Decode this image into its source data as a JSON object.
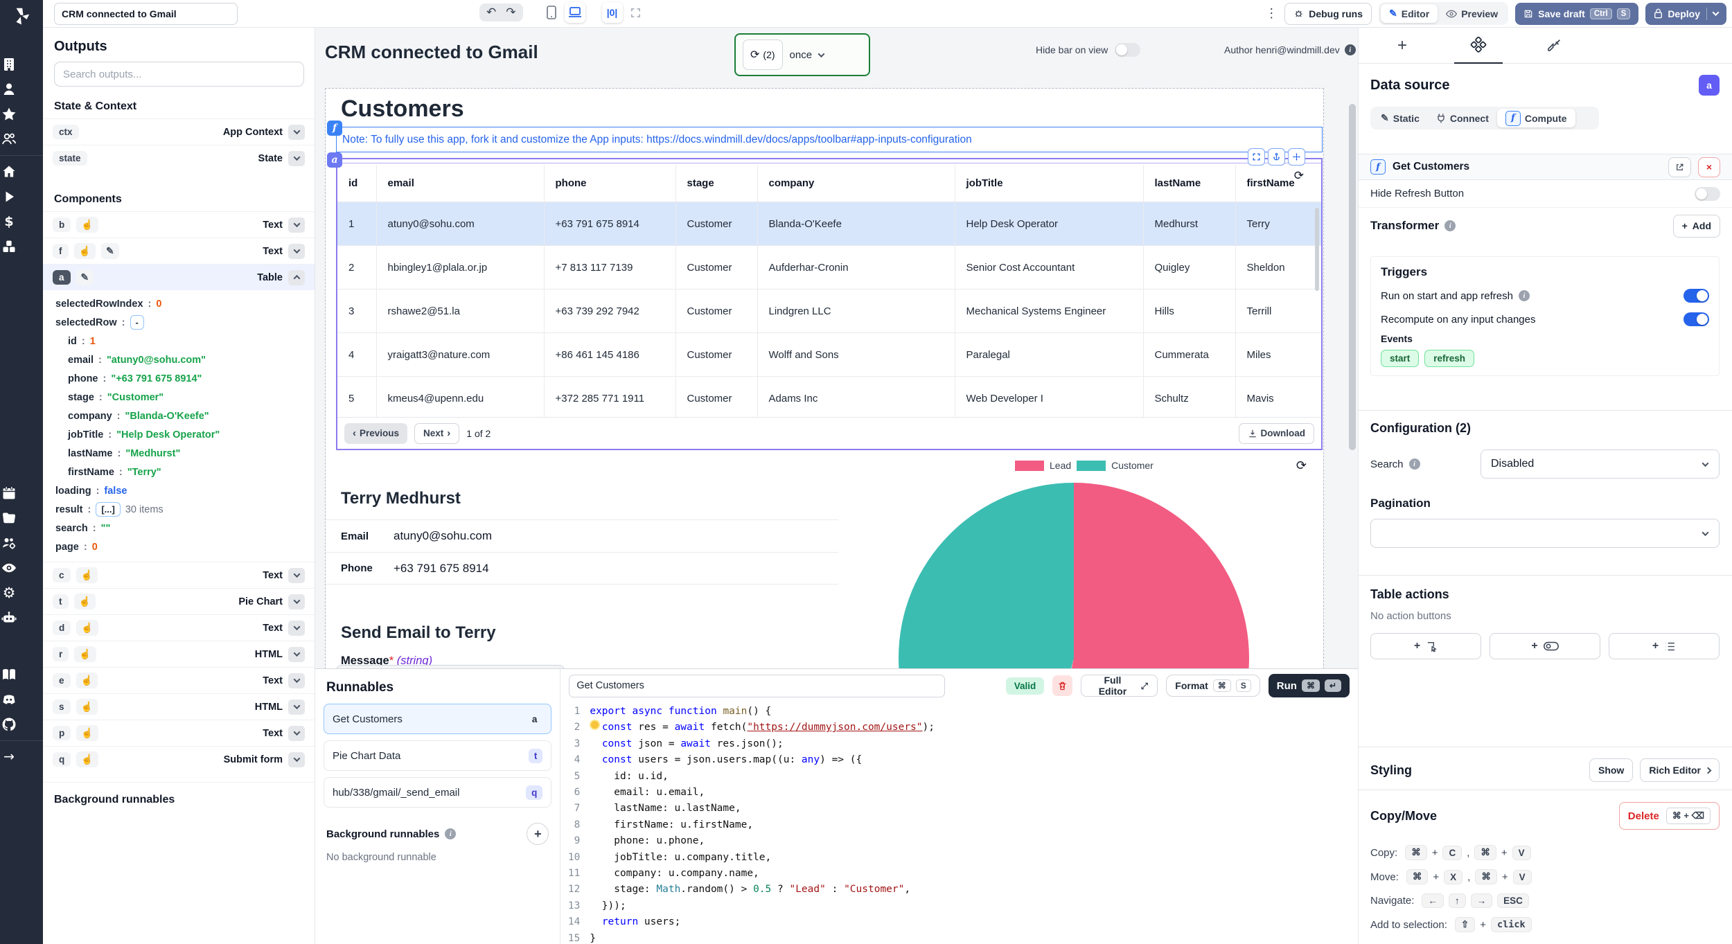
{
  "topbar": {
    "title_input": "CRM connected to Gmail",
    "debug_runs_label": "Debug runs",
    "editor_label": "Editor",
    "preview_label": "Preview",
    "save_draft_label": "Save draft",
    "save_kbd": [
      "Ctrl",
      "S"
    ],
    "deploy_label": "Deploy"
  },
  "sidebar": {
    "groups": [
      [
        "building-icon",
        "user-icon",
        "star-icon",
        "user-group-icon"
      ],
      [
        "home-icon",
        "play-icon",
        "dollar-icon",
        "cubes-icon"
      ],
      [
        "calendar-icon",
        "folder-icon",
        "team-settings-icon",
        "eye-icon",
        "gear-icon",
        "robot-icon"
      ],
      [
        "book-icon",
        "discord-icon",
        "github-icon"
      ],
      [
        "arrow-right-icon"
      ]
    ]
  },
  "left_panel": {
    "title": "Outputs",
    "search_placeholder": "Search outputs...",
    "state_context_title": "State & Context",
    "state_items": [
      {
        "id": "ctx",
        "type": "App Context"
      },
      {
        "id": "state",
        "type": "State"
      }
    ],
    "components_title": "Components",
    "components_top": [
      {
        "id": "b",
        "icons": [
          "hand"
        ],
        "type": "Text"
      },
      {
        "id": "f",
        "icons": [
          "hand",
          "pencil"
        ],
        "type": "Text"
      },
      {
        "id": "a",
        "icons": [
          "pencil"
        ],
        "type": "Table",
        "selected": true,
        "dark": true,
        "expanded": true
      }
    ],
    "table_props": [
      {
        "key": "selectedRowIndex",
        "value": "0",
        "cls": "num",
        "indent": 0
      },
      {
        "key": "selectedRow",
        "value": "-",
        "cls": "box",
        "indent": 0
      },
      {
        "key": "id",
        "value": "1",
        "cls": "num",
        "indent": 1
      },
      {
        "key": "email",
        "value": "\"atuny0@sohu.com\"",
        "cls": "str",
        "indent": 1
      },
      {
        "key": "phone",
        "value": "\"+63 791 675 8914\"",
        "cls": "str",
        "indent": 1
      },
      {
        "key": "stage",
        "value": "\"Customer\"",
        "cls": "str",
        "indent": 1
      },
      {
        "key": "company",
        "value": "\"Blanda-O'Keefe\"",
        "cls": "str",
        "indent": 1
      },
      {
        "key": "jobTitle",
        "value": "\"Help Desk Operator\"",
        "cls": "str",
        "indent": 1
      },
      {
        "key": "lastName",
        "value": "\"Medhurst\"",
        "cls": "str",
        "indent": 1
      },
      {
        "key": "firstName",
        "value": "\"Terry\"",
        "cls": "str",
        "indent": 1
      },
      {
        "key": "loading",
        "value": "false",
        "cls": "bool",
        "indent": 0
      },
      {
        "key": "result",
        "value": "[...]",
        "cls": "box",
        "suffix": "30 items",
        "indent": 0
      },
      {
        "key": "search",
        "value": "\"\"",
        "cls": "str",
        "indent": 0
      },
      {
        "key": "page",
        "value": "0",
        "cls": "num",
        "indent": 0
      }
    ],
    "components_bottom": [
      {
        "id": "c",
        "icons": [
          "hand"
        ],
        "type": "Text"
      },
      {
        "id": "t",
        "icons": [
          "hand"
        ],
        "type": "Pie Chart"
      },
      {
        "id": "d",
        "icons": [
          "hand"
        ],
        "type": "Text"
      },
      {
        "id": "r",
        "icons": [
          "hand"
        ],
        "type": "HTML"
      },
      {
        "id": "e",
        "icons": [
          "hand"
        ],
        "type": "Text"
      },
      {
        "id": "s",
        "icons": [
          "hand"
        ],
        "type": "HTML"
      },
      {
        "id": "p",
        "icons": [
          "hand"
        ],
        "type": "Text"
      },
      {
        "id": "q",
        "icons": [
          "hand"
        ],
        "type": "Submit form"
      }
    ],
    "background_title": "Background runnables"
  },
  "canvas": {
    "app_title": "CRM connected to Gmail",
    "refresh_count": "(2)",
    "schedule_value": "once",
    "hide_bar_label": "Hide bar on view",
    "author": "Author henri@windmill.dev",
    "page_title": "Customers",
    "note_badge": "f",
    "table_badge": "a",
    "note": "Note: To fully use this app, fork it and customize the App inputs: https://docs.windmill.dev/docs/apps/toolbar#app-inputs-configuration",
    "table": {
      "columns": [
        "id",
        "email",
        "phone",
        "stage",
        "company",
        "jobTitle",
        "lastName",
        "firstName"
      ],
      "rows": [
        [
          "1",
          "atuny0@sohu.com",
          "+63 791 675 8914",
          "Customer",
          "Blanda-O'Keefe",
          "Help Desk Operator",
          "Medhurst",
          "Terry"
        ],
        [
          "2",
          "hbingley1@plala.or.jp",
          "+7 813 117 7139",
          "Customer",
          "Aufderhar-Cronin",
          "Senior Cost Accountant",
          "Quigley",
          "Sheldon"
        ],
        [
          "3",
          "rshawe2@51.la",
          "+63 739 292 7942",
          "Customer",
          "Lindgren LLC",
          "Mechanical Systems Engineer",
          "Hills",
          "Terrill"
        ],
        [
          "4",
          "yraigatt3@nature.com",
          "+86 461 145 4186",
          "Customer",
          "Wolff and Sons",
          "Paralegal",
          "Cummerata",
          "Miles"
        ],
        [
          "5",
          "kmeus4@upenn.edu",
          "+372 285 771 1911",
          "Customer",
          "Adams Inc",
          "Web Developer I",
          "Schultz",
          "Mavis"
        ]
      ],
      "selected_row_index": 0,
      "previous_label": "Previous",
      "next_label": "Next",
      "page_info": "1 of 2",
      "download_label": "Download"
    },
    "detail": {
      "name": "Terry Medhurst",
      "email_label": "Email",
      "email": "atuny0@sohu.com",
      "phone_label": "Phone",
      "phone": "+63 791 675 8914",
      "send_title": "Send Email to Terry",
      "message_label": "Message",
      "message_required": "*",
      "message_type": "(string)"
    }
  },
  "chart_data": {
    "type": "pie",
    "labels": [
      "Lead",
      "Customer"
    ],
    "values": [
      16,
      14
    ],
    "colors": [
      "#f25c82",
      "#3cbdb2"
    ],
    "legend_position": "top-right",
    "total_items": 30
  },
  "bottom_panel": {
    "runnables_title": "Runnables",
    "runnables": [
      {
        "label": "Get Customers",
        "badge": "a",
        "selected": true
      },
      {
        "label": "Pie Chart Data",
        "badge": "t",
        "selected": false
      },
      {
        "label": "hub/338/gmail/_send_email",
        "badge": "q",
        "selected": false
      }
    ],
    "background_title": "Background runnables",
    "background_empty": "No background runnable",
    "script_name": "Get Customers",
    "valid_label": "Valid",
    "full_editor_label": "Full Editor",
    "format_label": "Format",
    "format_kbd": [
      "⌘",
      "S"
    ],
    "run_label": "Run",
    "run_kbd": [
      "⌘",
      "↵"
    ],
    "code_lines": [
      [
        [
          "k",
          "export"
        ],
        [
          "p",
          " "
        ],
        [
          "k",
          "async"
        ],
        [
          "p",
          " "
        ],
        [
          "k",
          "function"
        ],
        [
          "p",
          " "
        ],
        [
          "f",
          "main"
        ],
        [
          "p",
          "() {"
        ]
      ],
      [
        [
          "p",
          "  "
        ],
        [
          "k",
          "const"
        ],
        [
          "p",
          " res = "
        ],
        [
          "k",
          "await"
        ],
        [
          "p",
          " fetch("
        ],
        [
          "u",
          "\"https://dummyjson.com/users\""
        ],
        [
          "p",
          ");"
        ]
      ],
      [
        [
          "p",
          "  "
        ],
        [
          "k",
          "const"
        ],
        [
          "p",
          " json = "
        ],
        [
          "k",
          "await"
        ],
        [
          "p",
          " res.json();"
        ]
      ],
      [
        [
          "p",
          "  "
        ],
        [
          "k",
          "const"
        ],
        [
          "p",
          " users = json.users.map((u: "
        ],
        [
          "k",
          "any"
        ],
        [
          "p",
          ") => ({"
        ]
      ],
      [
        [
          "p",
          "    id: u.id,"
        ]
      ],
      [
        [
          "p",
          "    email: u.email,"
        ]
      ],
      [
        [
          "p",
          "    lastName: u.lastName,"
        ]
      ],
      [
        [
          "p",
          "    firstName: u.firstName,"
        ]
      ],
      [
        [
          "p",
          "    phone: u.phone,"
        ]
      ],
      [
        [
          "p",
          "    jobTitle: u.company.title,"
        ]
      ],
      [
        [
          "p",
          "    company: u.company.name,"
        ]
      ],
      [
        [
          "p",
          "    stage: "
        ],
        [
          "t",
          "Math"
        ],
        [
          "p",
          ".random() > "
        ],
        [
          "n",
          "0.5"
        ],
        [
          "p",
          " ? "
        ],
        [
          "s",
          "\"Lead\""
        ],
        [
          "p",
          " : "
        ],
        [
          "s",
          "\"Customer\""
        ],
        [
          "p",
          ","
        ]
      ],
      [
        [
          "p",
          "  }));"
        ]
      ],
      [
        [
          "p",
          "  "
        ],
        [
          "k",
          "return"
        ],
        [
          "p",
          " users;"
        ]
      ],
      [
        [
          "p",
          "}"
        ]
      ]
    ]
  },
  "right_panel": {
    "data_source": {
      "title": "Data source",
      "badge": "a",
      "modes": [
        "Static",
        "Connect",
        "Compute"
      ],
      "active_mode": "Compute",
      "runnable_name": "Get Customers",
      "hide_refresh_label": "Hide Refresh Button",
      "hide_refresh_on": false,
      "transformer_label": "Transformer",
      "add_label": "Add"
    },
    "triggers": {
      "title": "Triggers",
      "rows": [
        {
          "label": "Run on start and app refresh",
          "info": true,
          "on": true
        },
        {
          "label": "Recompute on any input changes",
          "info": false,
          "on": true
        }
      ],
      "events_label": "Events",
      "events": [
        "start",
        "refresh"
      ]
    },
    "configuration": {
      "title": "Configuration (2)",
      "search_label": "Search",
      "search_value": "Disabled",
      "pagination_label": "Pagination",
      "pagination_value": ""
    },
    "table_actions": {
      "title": "Table actions",
      "empty_text": "No action buttons"
    },
    "styling": {
      "title": "Styling",
      "show_label": "Show",
      "rich_editor_label": "Rich Editor"
    },
    "copy_move": {
      "title": "Copy/Move",
      "delete_label": "Delete",
      "delete_kbd": "⌘ + ⌫",
      "rows": [
        {
          "label": "Copy:",
          "sep": ",",
          "groups": [
            [
              "⌘",
              "C"
            ],
            [
              "⌘",
              "V"
            ]
          ]
        },
        {
          "label": "Move:",
          "sep": ",",
          "groups": [
            [
              "⌘",
              "X"
            ],
            [
              "⌘",
              "V"
            ]
          ]
        },
        {
          "label": "Navigate:",
          "sep": "",
          "groups": [
            [
              "←"
            ],
            [
              "↑"
            ],
            [
              "→"
            ],
            [
              "ESC"
            ]
          ]
        },
        {
          "label": "Add to selection:",
          "sep": "",
          "groups": [
            [
              "⇧",
              "click"
            ]
          ]
        }
      ]
    }
  }
}
